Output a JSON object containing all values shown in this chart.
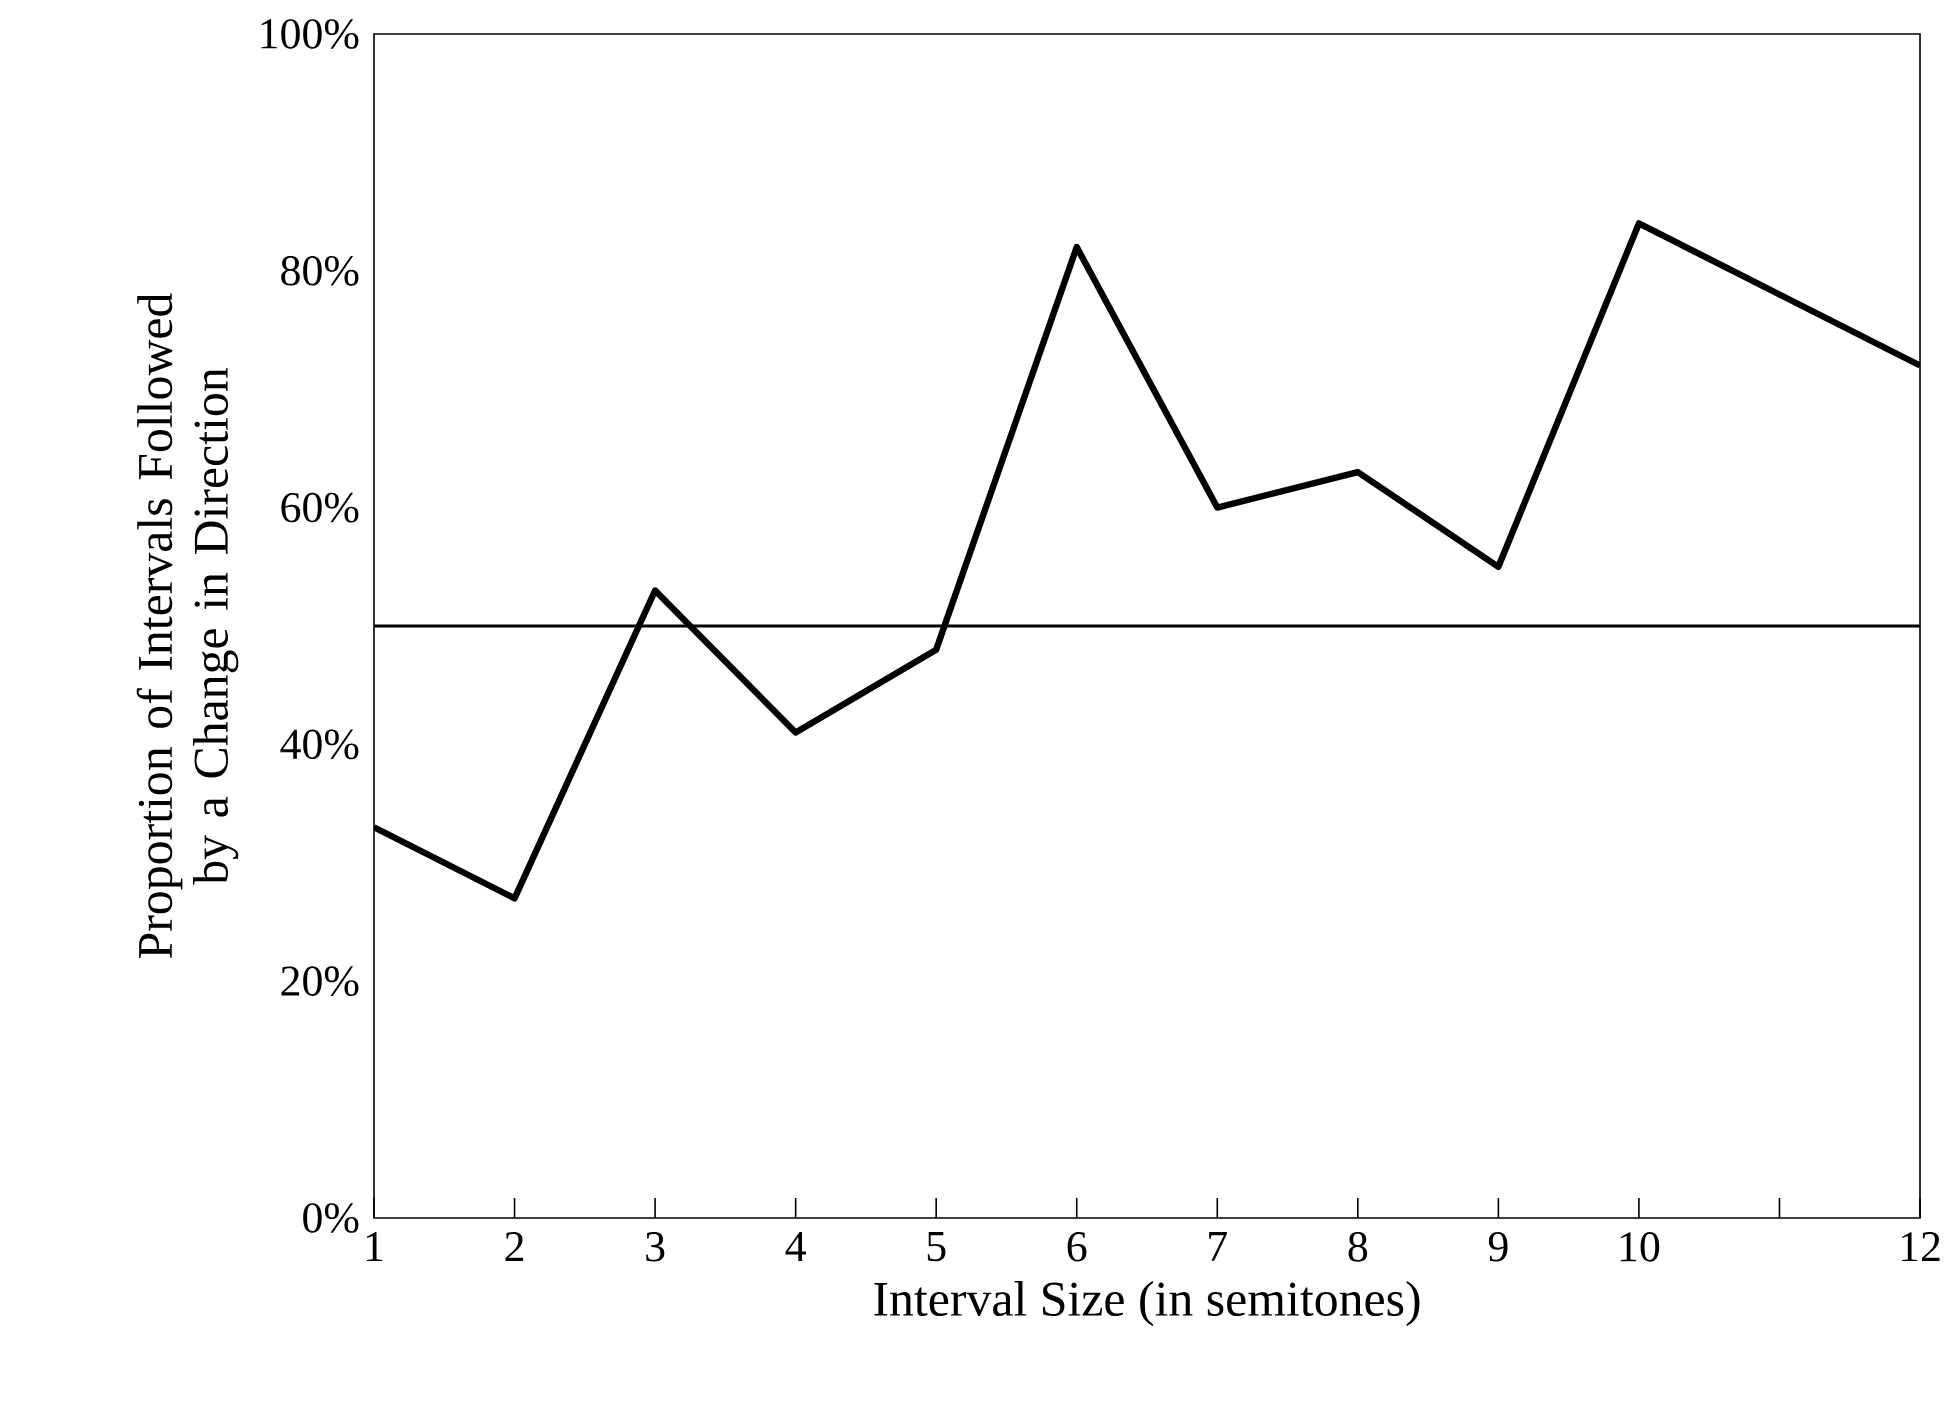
{
  "chart_data": {
    "type": "line",
    "xlabel": "Interval Size (in semitones)",
    "ylabel": "Proportion of Intervals Followed by a Change in Direction",
    "x": [
      1,
      2,
      3,
      4,
      5,
      6,
      7,
      8,
      9,
      10,
      12
    ],
    "series": [
      {
        "color": "#000000",
        "values": [
          33,
          27,
          53,
          41,
          48,
          82,
          60,
          63,
          55,
          84,
          72
        ]
      }
    ],
    "xlim": [
      1,
      12
    ],
    "ylim": [
      0,
      100
    ],
    "xticks": [
      1,
      2,
      3,
      4,
      5,
      6,
      7,
      8,
      9,
      10,
      {
        "value": 11,
        "label": null
      },
      12
    ],
    "yticks": [
      {
        "value": 0,
        "label": "0%"
      },
      {
        "value": 20,
        "label": "20%"
      },
      {
        "value": 40,
        "label": "40%"
      },
      {
        "value": 60,
        "label": "60%"
      },
      {
        "value": 80,
        "label": "80%"
      },
      {
        "value": 100,
        "label": "100%"
      }
    ],
    "ref_lines": [
      {
        "axis": "y",
        "value": 50,
        "label": null,
        "color": "#000000"
      }
    ],
    "grid": false
  }
}
